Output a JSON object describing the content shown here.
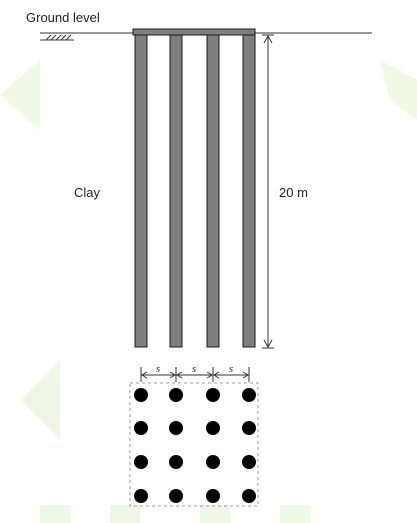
{
  "labels": {
    "ground_level": "Ground level",
    "soil": "Clay",
    "pile_length": "20 m",
    "spacing": [
      "s",
      "s",
      "s"
    ]
  },
  "pile_group": {
    "piles_in_elevation": 4,
    "plan_rows": 4,
    "plan_columns": 4
  },
  "colors": {
    "pile_fill": "#7f7f7f",
    "pile_outline": "#1a1a1a",
    "pile_dot": "#000000",
    "line": "#333333",
    "watermark": "#d8f0c0"
  }
}
